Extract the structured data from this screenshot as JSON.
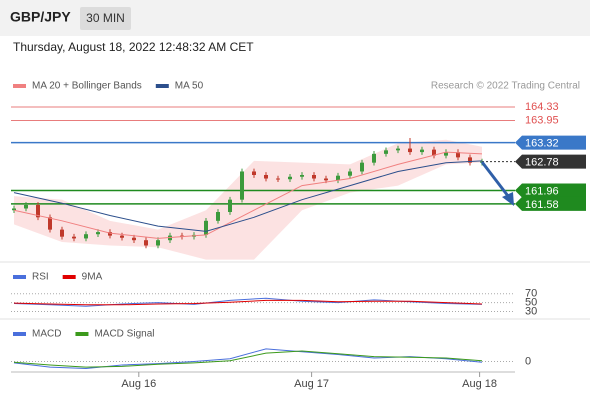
{
  "header": {
    "symbol": "GBP/JPY",
    "interval": "30 MIN",
    "timestamp": "Thursday, August 18, 2022 12:48:32 AM CET",
    "credit": "Research © 2022 Trading Central"
  },
  "chart_data": [
    {
      "type": "candlestick",
      "open": [
        161.4,
        161.45,
        161.55,
        161.2,
        160.85,
        160.65,
        160.6,
        160.72,
        160.78,
        160.68,
        160.62,
        160.55,
        160.4,
        160.55,
        160.68,
        160.65,
        160.7,
        161.1,
        161.35,
        161.7,
        162.5,
        162.4,
        162.3,
        162.28,
        162.35,
        162.4,
        162.3,
        162.25,
        162.38,
        162.5,
        162.75,
        163.0,
        163.1,
        163.15,
        163.05,
        163.12,
        162.95,
        163.05,
        162.9,
        162.75
      ],
      "high": [
        161.53,
        161.63,
        161.63,
        161.28,
        160.93,
        160.73,
        160.8,
        160.86,
        160.86,
        160.76,
        160.7,
        160.63,
        160.63,
        160.76,
        160.76,
        160.78,
        161.18,
        161.43,
        161.78,
        162.58,
        162.58,
        162.48,
        162.38,
        162.43,
        162.48,
        162.48,
        162.38,
        162.46,
        162.58,
        162.83,
        163.08,
        163.18,
        163.23,
        163.45,
        163.2,
        163.2,
        163.13,
        163.13,
        162.98,
        162.86
      ],
      "low": [
        161.32,
        161.37,
        161.12,
        160.77,
        160.57,
        160.52,
        160.52,
        160.64,
        160.6,
        160.54,
        160.47,
        160.32,
        160.32,
        160.47,
        160.57,
        160.57,
        160.62,
        161.02,
        161.27,
        161.62,
        162.32,
        162.22,
        162.2,
        162.2,
        162.27,
        162.22,
        162.17,
        162.17,
        162.3,
        162.42,
        162.67,
        162.92,
        163.02,
        162.97,
        162.97,
        162.87,
        162.87,
        162.82,
        162.67,
        162.67
      ],
      "close": [
        161.45,
        161.55,
        161.2,
        160.85,
        160.65,
        160.6,
        160.72,
        160.78,
        160.68,
        160.62,
        160.55,
        160.4,
        160.55,
        160.68,
        160.65,
        160.7,
        161.1,
        161.35,
        161.7,
        162.5,
        162.4,
        162.3,
        162.28,
        162.35,
        162.4,
        162.3,
        162.25,
        162.38,
        162.5,
        162.75,
        163.0,
        163.1,
        163.15,
        163.05,
        163.12,
        162.95,
        163.05,
        162.9,
        162.75,
        162.78
      ],
      "up_color": "#3c9a3c",
      "down_color": "#c0392b",
      "xlim": [
        -0.25,
        41.75
      ],
      "ylim": [
        160.13,
        164.67
      ],
      "xticks": [
        {
          "value": 10.4,
          "label": "Aug 16"
        },
        {
          "value": 24.8,
          "label": "Aug 17"
        },
        {
          "value": 38.8,
          "label": "Aug 18"
        }
      ],
      "overlays": [
        {
          "name": "MA 20 + Bollinger Bands",
          "color": "#f08080",
          "band_color": "#fbd5d5",
          "x": [
            0,
            4,
            8,
            12,
            16,
            20,
            24,
            28,
            32,
            36,
            39
          ],
          "values": [
            161.4,
            161.1,
            160.75,
            160.6,
            160.7,
            161.4,
            162.1,
            162.3,
            162.7,
            163.05,
            163.0
          ],
          "upper": [
            161.8,
            161.7,
            161.1,
            160.85,
            161.4,
            162.8,
            162.75,
            162.7,
            163.3,
            163.4,
            163.2
          ],
          "lower": [
            161.0,
            160.5,
            160.4,
            160.35,
            160.0,
            160.0,
            161.4,
            161.9,
            162.1,
            162.7,
            162.75
          ]
        },
        {
          "name": "MA 50",
          "color": "#2c4f8c",
          "x": [
            0,
            4,
            8,
            12,
            16,
            20,
            24,
            28,
            32,
            36,
            39
          ],
          "values": [
            161.9,
            161.6,
            161.25,
            160.95,
            160.8,
            161.2,
            161.7,
            162.1,
            162.5,
            162.75,
            162.8
          ]
        }
      ],
      "levels": [
        {
          "value": 164.33,
          "color": "#e05050",
          "tag": "text"
        },
        {
          "value": 163.95,
          "color": "#e05050",
          "tag": "text"
        },
        {
          "value": 163.32,
          "color": "#3a78c8",
          "tag": "box"
        },
        {
          "value": 161.96,
          "color": "#1f8a1f",
          "tag": "box"
        },
        {
          "value": 161.58,
          "color": "#1f8a1f",
          "tag": "box"
        }
      ],
      "last_price": {
        "value": 162.78,
        "color": "#333333"
      }
    },
    {
      "type": "line",
      "x": [
        0,
        3,
        6,
        9,
        12,
        15,
        18,
        21,
        24,
        27,
        30,
        33,
        36,
        39
      ],
      "xlim": [
        -0.25,
        41.75
      ],
      "ylim": [
        20,
        85
      ],
      "yticks": [
        70,
        50,
        30
      ],
      "series": [
        {
          "name": "RSI",
          "color": "#4a6fdc",
          "values": [
            48,
            45,
            42,
            47,
            50,
            46,
            55,
            60,
            53,
            50,
            56,
            52,
            48,
            46
          ]
        },
        {
          "name": "9MA",
          "color": "#e00000",
          "values": [
            49,
            47,
            45,
            45,
            47,
            48,
            51,
            55,
            55,
            52,
            53,
            53,
            50,
            47
          ]
        }
      ]
    },
    {
      "type": "line",
      "x": [
        0,
        3,
        6,
        9,
        12,
        15,
        18,
        21,
        24,
        27,
        30,
        33,
        36,
        39
      ],
      "xlim": [
        -0.25,
        41.75
      ],
      "ylim": [
        -0.15,
        0.25
      ],
      "yticks": [
        0
      ],
      "series": [
        {
          "name": "MACD",
          "color": "#4a6fdc",
          "values": [
            -0.02,
            -0.08,
            -0.1,
            -0.05,
            -0.03,
            0.0,
            0.04,
            0.18,
            0.14,
            0.1,
            0.05,
            0.07,
            0.04,
            -0.01
          ]
        },
        {
          "name": "MACD Signal",
          "color": "#3c9a1c",
          "values": [
            -0.01,
            -0.05,
            -0.08,
            -0.07,
            -0.04,
            -0.02,
            0.01,
            0.12,
            0.15,
            0.11,
            0.07,
            0.06,
            0.05,
            0.01
          ]
        }
      ]
    }
  ]
}
